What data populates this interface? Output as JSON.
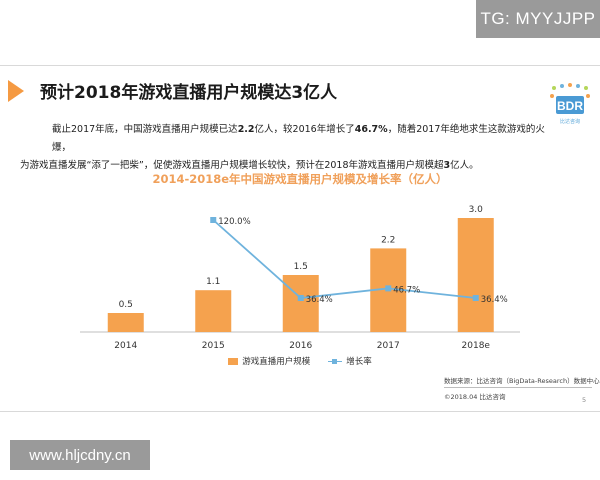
{
  "watermark_top": "TG: MYYJJPP",
  "watermark_bottom": "www.hljcdny.cn",
  "slide": {
    "title": "预计2018年游戏直播用户规模达3亿人",
    "logo_text": "BDR",
    "logo_subtext": "比达咨询",
    "description": {
      "p1": "截止2017年底，中国游戏直播用户规模已达",
      "v1": "2.2",
      "p2": "亿人，较2016年增长了",
      "v2": "46.7%",
      "p3": "，随着2017年绝地求生这款游戏的火爆，",
      "p4": "为游戏直播发展“添了一把柴”，促使游戏直播用户规模增长较快，预计在2018年游戏直播用户规模超",
      "v3": "3",
      "p5": "亿人。"
    },
    "source": "数据来源：比达咨询（BigData-Research）数据中心",
    "copyright": "©2018.04  比达咨询",
    "page_number": "5"
  },
  "chart_data": {
    "type": "bar",
    "title": "2014-2018e年中国游戏直播用户规模及增长率（亿人）",
    "categories": [
      "2014",
      "2015",
      "2016",
      "2017",
      "2018e"
    ],
    "series": [
      {
        "name": "游戏直播用户规模",
        "type": "bar",
        "values": [
          0.5,
          1.1,
          1.5,
          2.2,
          3.0
        ],
        "labels": [
          "0.5",
          "1.1",
          "1.5",
          "2.2",
          "3.0"
        ],
        "color": "#f5a24e"
      },
      {
        "name": "增长率",
        "type": "line",
        "values": [
          null,
          120.0,
          36.4,
          46.7,
          36.4
        ],
        "labels": [
          "",
          "120.0%",
          "36.4%",
          "46.7%",
          "36.4%"
        ],
        "color": "#6fb3dd"
      }
    ],
    "legend_position": "bottom",
    "grid": false
  }
}
